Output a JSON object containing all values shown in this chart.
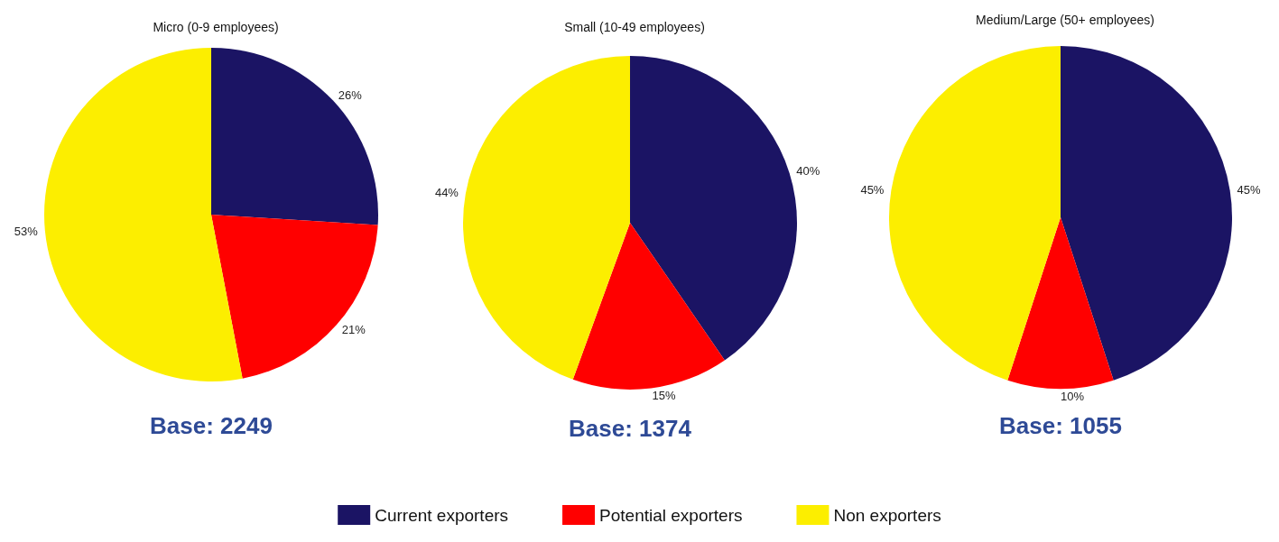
{
  "chart_data": [
    {
      "type": "pie",
      "title": "Micro (0-9 employees)",
      "categories": [
        null,
        null,
        null
      ],
      "values": [
        26,
        21,
        53
      ],
      "colors": [
        "#1b1464",
        "#ff0000",
        "#fcee00"
      ],
      "value_labels": [
        "26%",
        "21%",
        "53%"
      ],
      "annotations": [
        "Base: 2249"
      ]
    },
    {
      "type": "pie",
      "title": "Small (10-49 employees)",
      "categories": [
        "Current exporters",
        "Potential exporters",
        "Non exporters"
      ],
      "values": [
        40,
        15,
        44
      ],
      "colors": [
        "#1b1464",
        "#ff0000",
        "#fcee00"
      ],
      "value_labels": [
        "40%",
        "15%",
        "44%"
      ],
      "annotations": [
        "Base: 1374"
      ],
      "legend": "bottom"
    },
    {
      "type": "pie",
      "title": "Medium/Large (50+ employees)",
      "categories": [
        null,
        null,
        null
      ],
      "values": [
        45,
        10,
        45
      ],
      "colors": [
        "#1b1464",
        "#ff0000",
        "#fcee00"
      ],
      "value_labels": [
        "45%",
        "10%",
        "45%"
      ],
      "annotations": [
        "Base: 1055"
      ]
    }
  ]
}
